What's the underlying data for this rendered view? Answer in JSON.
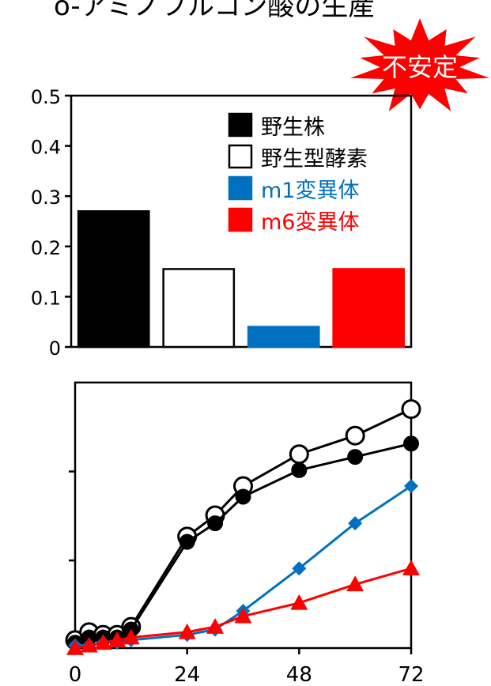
{
  "title": "o-アミノフルコン酸の生産",
  "badge": {
    "label": "不安定",
    "color": "#ff0000",
    "text_color": "#ffffff"
  },
  "chart_data": [
    {
      "type": "bar",
      "categories": [
        "野生株",
        "野生型酵素",
        "m1変異体",
        "m6変異体"
      ],
      "values": [
        0.27,
        0.155,
        0.04,
        0.155
      ],
      "colors": [
        "#000000",
        "#ffffff",
        "#0070c0",
        "#ff0000"
      ],
      "ylim": [
        0,
        0.5
      ],
      "yticks": [
        "0",
        "0.1",
        "0.2",
        "0.3",
        "0.4",
        "0.5"
      ],
      "grid": false,
      "legend": {
        "placement": "top-right",
        "entries": [
          {
            "label": "野生株",
            "color": "#000000"
          },
          {
            "label": "野生型酵素",
            "color": "#ffffff"
          },
          {
            "label": "m1変異体",
            "color": "#0070c0"
          },
          {
            "label": "m6変異体",
            "color": "#ff0000"
          }
        ]
      }
    },
    {
      "type": "line",
      "xlim": [
        0,
        72
      ],
      "xticks": [
        "0",
        "24",
        "48",
        "72"
      ],
      "ylim": [
        0,
        1.0
      ],
      "grid": false,
      "series": [
        {
          "marker": "open-circle",
          "color": "#000000",
          "x": [
            0,
            3,
            6,
            9,
            12,
            24,
            30,
            36,
            48,
            60,
            72
          ],
          "y": [
            0.03,
            0.06,
            0.05,
            0.05,
            0.08,
            0.42,
            0.5,
            0.61,
            0.73,
            0.8,
            0.9
          ]
        },
        {
          "marker": "filled-circle",
          "color": "#000000",
          "x": [
            0,
            3,
            6,
            9,
            12,
            24,
            30,
            36,
            48,
            60,
            72
          ],
          "y": [
            0.02,
            0.04,
            0.04,
            0.04,
            0.07,
            0.4,
            0.47,
            0.57,
            0.67,
            0.72,
            0.77
          ]
        },
        {
          "marker": "diamond",
          "color": "#0070c0",
          "x": [
            0,
            3,
            6,
            9,
            12,
            24,
            30,
            36,
            48,
            60,
            72
          ],
          "y": [
            0.01,
            0.01,
            0.02,
            0.02,
            0.03,
            0.05,
            0.07,
            0.14,
            0.3,
            0.47,
            0.61
          ]
        },
        {
          "marker": "triangle",
          "color": "#ff0000",
          "x": [
            0,
            3,
            6,
            9,
            12,
            24,
            30,
            36,
            48,
            60,
            72
          ],
          "y": [
            0.0,
            0.01,
            0.02,
            0.03,
            0.04,
            0.06,
            0.08,
            0.12,
            0.17,
            0.24,
            0.3
          ]
        }
      ]
    }
  ]
}
